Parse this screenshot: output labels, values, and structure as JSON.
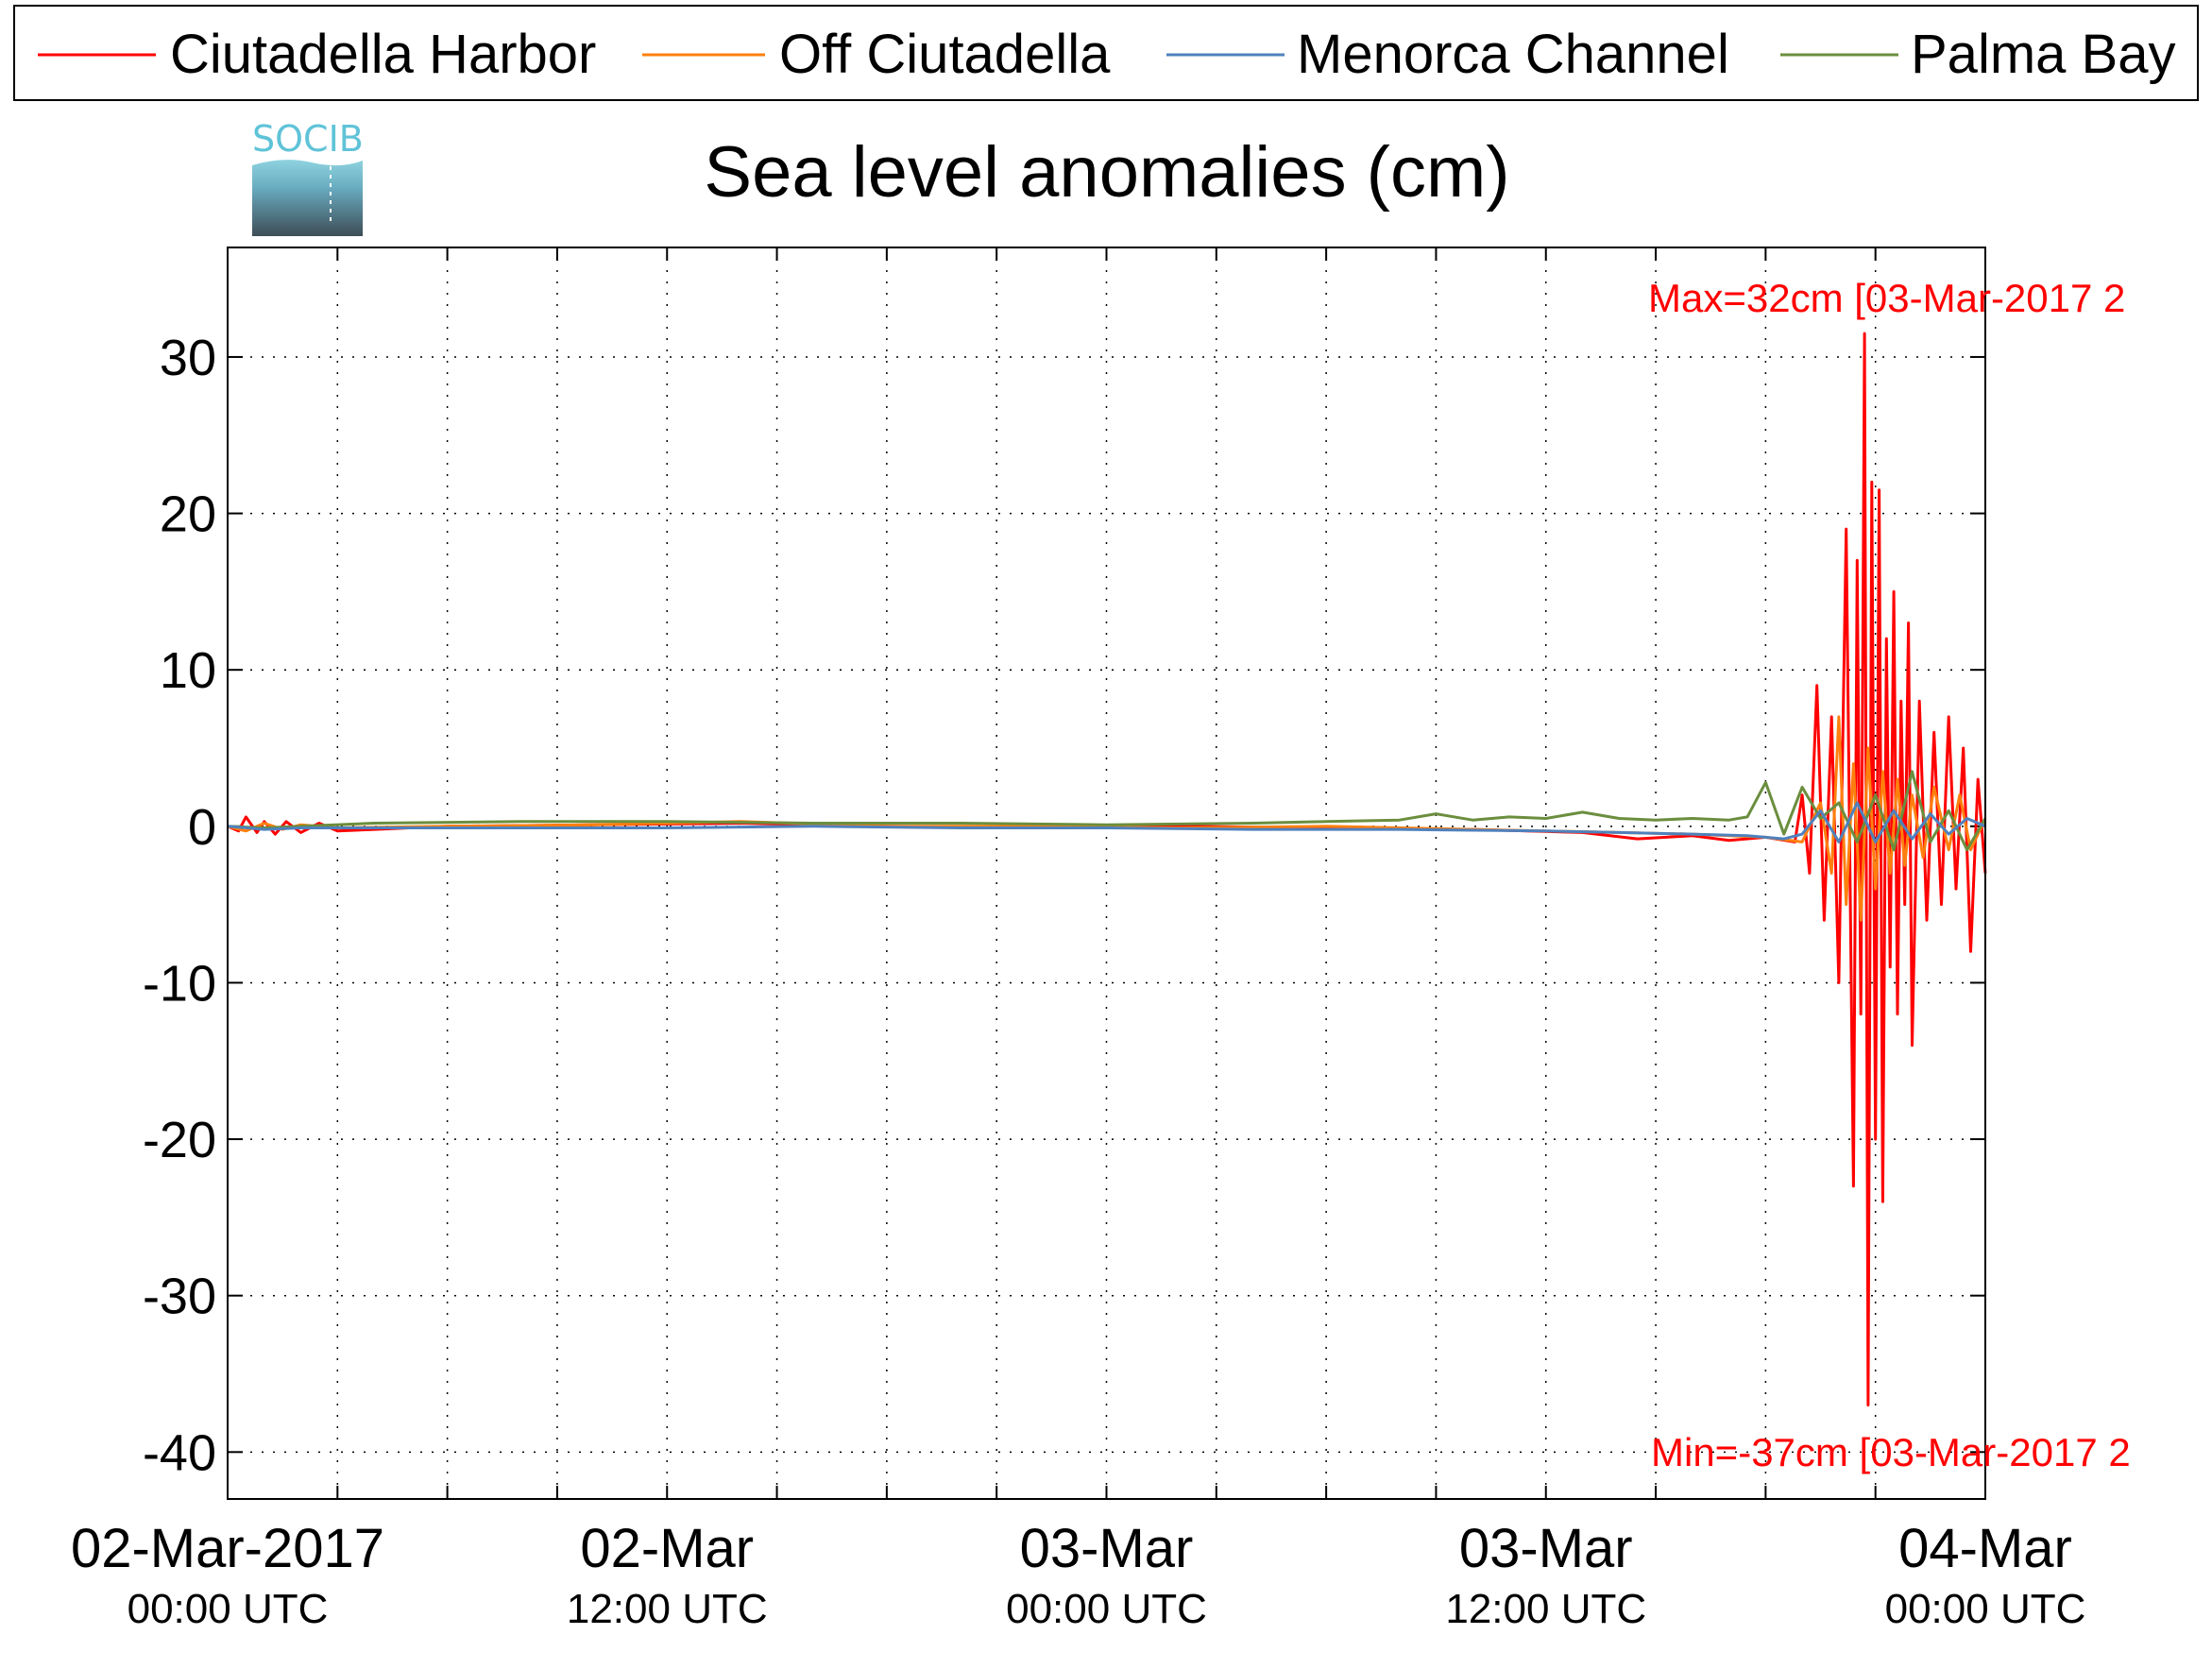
{
  "chart_data": {
    "type": "line",
    "title": "Sea level anomalies (cm)",
    "xlabel": "",
    "ylabel": "",
    "logo_text": "SOCIB",
    "x_unit": "hours",
    "xlim": [
      0,
      48
    ],
    "ylim": [
      -43,
      37
    ],
    "grid": true,
    "legend_position": "top",
    "yticks": [
      30,
      20,
      10,
      0,
      -10,
      -20,
      -30,
      -40
    ],
    "ytick_labels": [
      "30",
      "20",
      "10",
      "0",
      "-10",
      "-20",
      "-30",
      "-40"
    ],
    "xticks": [
      {
        "at": 0,
        "label": "02-Mar-2017",
        "sublabel": "00:00 UTC"
      },
      {
        "at": 12,
        "label": "02-Mar",
        "sublabel": "12:00 UTC"
      },
      {
        "at": 24,
        "label": "03-Mar",
        "sublabel": "00:00 UTC"
      },
      {
        "at": 36,
        "label": "03-Mar",
        "sublabel": "12:00 UTC"
      },
      {
        "at": 48,
        "label": "04-Mar",
        "sublabel": "00:00 UTC"
      }
    ],
    "minor_xticks": [
      3,
      6,
      9,
      15,
      18,
      21,
      27,
      30,
      33,
      39,
      42,
      45
    ],
    "annotations": {
      "max": {
        "text": "Max=32cm [03-Mar-2017 2",
        "x": 44.9,
        "y": 32,
        "color": "#ff0000"
      },
      "min": {
        "text": "Min=-37cm [03-Mar-2017 2",
        "x": 44.9,
        "y": -37,
        "color": "#ff0000"
      }
    },
    "series": [
      {
        "name": "Ciutadella Harbor",
        "color": "#ff0000",
        "x": [
          0,
          0.3,
          0.5,
          0.8,
          1.0,
          1.3,
          1.6,
          2.0,
          2.5,
          3.0,
          4.0,
          6.0,
          10.0,
          14.0,
          18.0,
          22.0,
          26.0,
          30.0,
          34.0,
          37.0,
          38.5,
          40.0,
          41.0,
          42.0,
          42.8,
          43.0,
          43.2,
          43.4,
          43.6,
          43.8,
          44.0,
          44.2,
          44.4,
          44.5,
          44.6,
          44.7,
          44.8,
          44.9,
          45.0,
          45.1,
          45.2,
          45.3,
          45.4,
          45.5,
          45.6,
          45.7,
          45.8,
          45.9,
          46.0,
          46.2,
          46.4,
          46.6,
          46.8,
          47.0,
          47.2,
          47.4,
          47.6,
          47.8,
          48.0
        ],
        "y": [
          0,
          -0.3,
          0.6,
          -0.4,
          0.3,
          -0.5,
          0.3,
          -0.4,
          0.2,
          -0.3,
          -0.2,
          0.0,
          0.1,
          0.2,
          0.0,
          -0.1,
          0.0,
          -0.1,
          -0.2,
          -0.4,
          -0.8,
          -0.6,
          -0.9,
          -0.7,
          -1.0,
          2.0,
          -3.0,
          9.0,
          -6.0,
          7.0,
          -10.0,
          19.0,
          -23.0,
          17.0,
          -12.0,
          31.5,
          -37.0,
          22.0,
          -20.0,
          21.5,
          -24.0,
          12.0,
          -9.0,
          15.0,
          -12.0,
          8.0,
          -5.0,
          13.0,
          -14.0,
          8.0,
          -6.0,
          6.0,
          -5.0,
          7.0,
          -4.0,
          5.0,
          -8.0,
          3.0,
          -3.0
        ]
      },
      {
        "name": "Off Ciutadella",
        "color": "#ff7f0e",
        "x": [
          0,
          0.5,
          1.0,
          1.5,
          2.0,
          3.0,
          6.0,
          10.0,
          14.0,
          18.0,
          22.0,
          26.0,
          30.0,
          34.0,
          38.0,
          40.0,
          42.0,
          43.0,
          43.5,
          43.8,
          44.0,
          44.2,
          44.4,
          44.6,
          44.8,
          45.0,
          45.2,
          45.4,
          45.6,
          45.8,
          46.0,
          46.3,
          46.6,
          47.0,
          47.3,
          47.6,
          48.0
        ],
        "y": [
          0,
          -0.3,
          0.2,
          -0.2,
          0.1,
          -0.1,
          0.0,
          0.1,
          0.3,
          0.0,
          0.0,
          -0.1,
          0.0,
          -0.2,
          -0.4,
          -0.5,
          -0.7,
          -1.0,
          1.5,
          -3.0,
          7.0,
          -5.0,
          4.0,
          -6.0,
          5.0,
          -4.0,
          3.5,
          -3.0,
          3.0,
          -2.5,
          2.0,
          -2.0,
          2.5,
          -1.5,
          2.0,
          -1.5,
          0.5
        ]
      },
      {
        "name": "Menorca Channel",
        "color": "#4f81bd",
        "x": [
          0,
          1.0,
          2.0,
          4.0,
          8.0,
          12.0,
          16.0,
          20.0,
          24.0,
          28.0,
          32.0,
          36.0,
          38.0,
          40.0,
          41.5,
          42.5,
          43.0,
          43.5,
          44.0,
          44.5,
          45.0,
          45.5,
          46.0,
          46.5,
          47.0,
          47.5,
          48.0
        ],
        "y": [
          0,
          -0.2,
          -0.1,
          -0.1,
          -0.1,
          -0.1,
          0.0,
          -0.1,
          -0.1,
          -0.2,
          -0.2,
          -0.3,
          -0.4,
          -0.5,
          -0.6,
          -0.8,
          -0.5,
          1.0,
          -1.0,
          1.5,
          -1.0,
          1.0,
          -0.8,
          0.8,
          -0.5,
          0.5,
          0.0
        ]
      },
      {
        "name": "Palma Bay",
        "color": "#6b8e3e",
        "x": [
          0,
          1.0,
          2.0,
          4.0,
          8.0,
          12.0,
          16.0,
          20.0,
          24.0,
          28.0,
          30.0,
          32.0,
          33.0,
          34.0,
          35.0,
          36.0,
          37.0,
          38.0,
          39.0,
          40.0,
          41.0,
          41.5,
          42.0,
          42.5,
          43.0,
          43.5,
          44.0,
          44.5,
          45.0,
          45.5,
          46.0,
          46.5,
          47.0,
          47.5,
          48.0
        ],
        "y": [
          0,
          -0.1,
          0.0,
          0.2,
          0.3,
          0.3,
          0.2,
          0.2,
          0.1,
          0.2,
          0.3,
          0.4,
          0.8,
          0.4,
          0.6,
          0.5,
          0.9,
          0.5,
          0.4,
          0.5,
          0.4,
          0.6,
          2.8,
          -0.5,
          2.5,
          0.5,
          1.5,
          -1.0,
          2.0,
          -1.5,
          3.5,
          -1.0,
          1.0,
          -1.5,
          0.5
        ]
      }
    ]
  }
}
